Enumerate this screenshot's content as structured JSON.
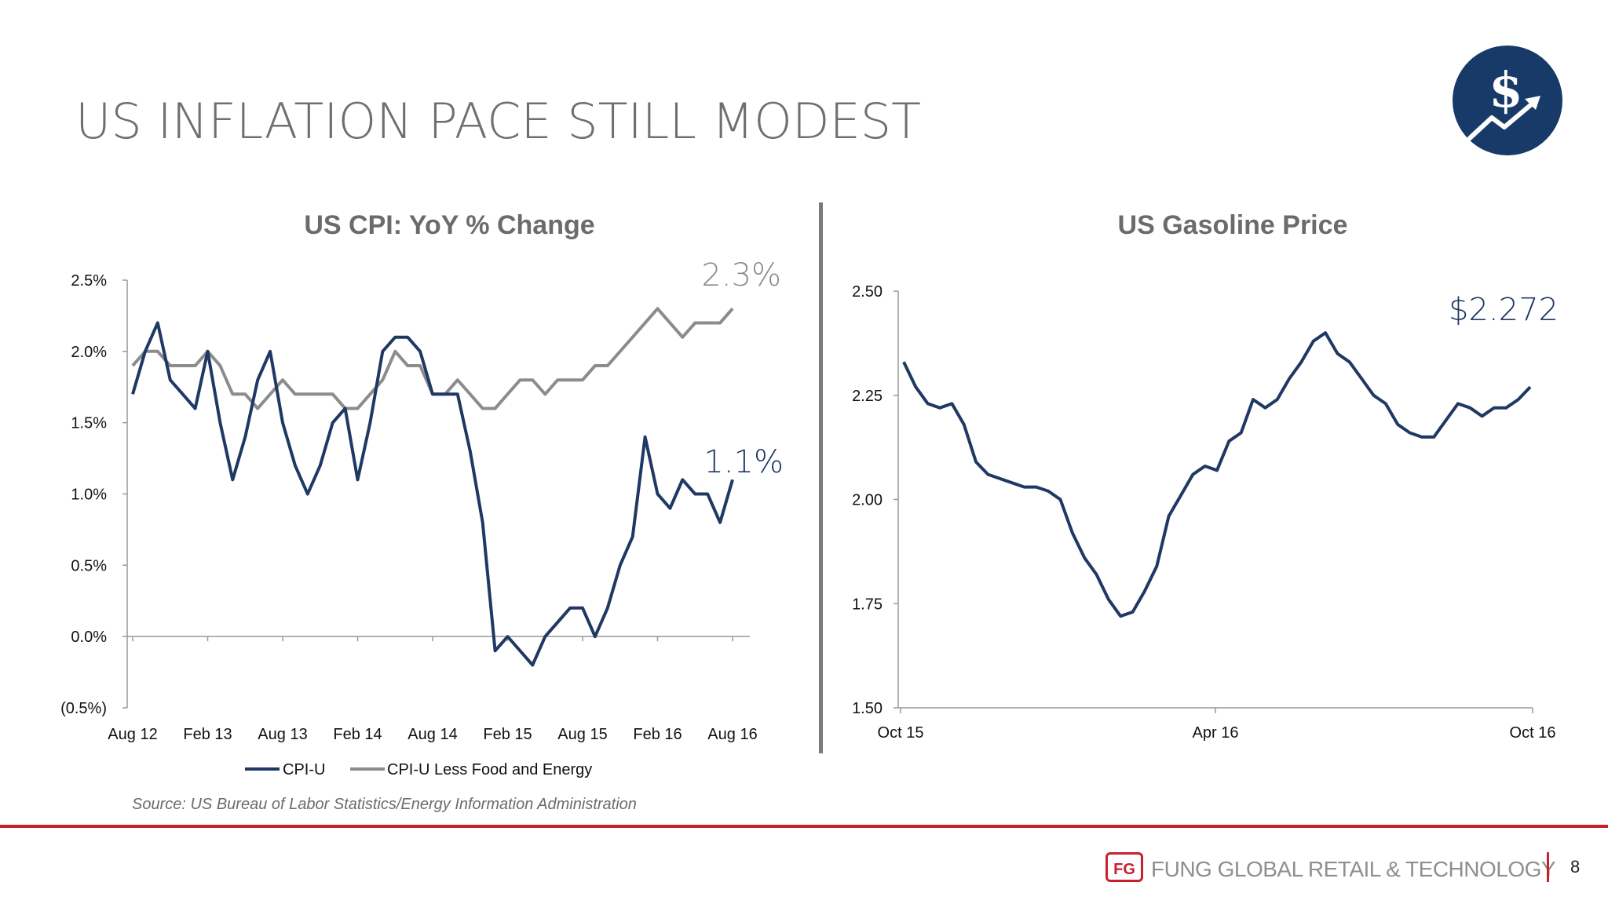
{
  "slide": {
    "title": "US INFLATION PACE STILL MODEST",
    "source": "Source: US Bureau of Labor Statistics/Energy Information Administration",
    "footer_brand": "FUNG GLOBAL RETAIL & TECHNOLOGY",
    "footer_logo_text": "FG",
    "page_number": "8",
    "logo_symbol": "$"
  },
  "colors": {
    "navy": "#1f3864",
    "gray_line": "#8c8c8c",
    "title_gray": "#6f6f6f",
    "accent_red": "#c8202f",
    "logo_bg": "#173a68"
  },
  "chart_data": [
    {
      "type": "line",
      "title": "US CPI: YoY % Change",
      "x": [
        "Aug 12",
        "Sep 12",
        "Oct 12",
        "Nov 12",
        "Dec 12",
        "Jan 13",
        "Feb 13",
        "Mar 13",
        "Apr 13",
        "May 13",
        "Jun 13",
        "Jul 13",
        "Aug 13",
        "Sep 13",
        "Oct 13",
        "Nov 13",
        "Dec 13",
        "Jan 14",
        "Feb 14",
        "Mar 14",
        "Apr 14",
        "May 14",
        "Jun 14",
        "Jul 14",
        "Aug 14",
        "Sep 14",
        "Oct 14",
        "Nov 14",
        "Dec 14",
        "Jan 15",
        "Feb 15",
        "Mar 15",
        "Apr 15",
        "May 15",
        "Jun 15",
        "Jul 15",
        "Aug 15",
        "Sep 15",
        "Oct 15",
        "Nov 15",
        "Dec 15",
        "Jan 16",
        "Feb 16",
        "Mar 16",
        "Apr 16",
        "May 16",
        "Jun 16",
        "Jul 16",
        "Aug 16"
      ],
      "xticklabels": [
        "Aug 12",
        "Feb 13",
        "Aug 13",
        "Feb 14",
        "Aug 14",
        "Feb 15",
        "Aug 15",
        "Feb 16",
        "Aug 16"
      ],
      "yticklabels": [
        "(0.5%)",
        "0.0%",
        "0.5%",
        "1.0%",
        "1.5%",
        "2.0%",
        "2.5%"
      ],
      "ylim": [
        -0.5,
        2.5
      ],
      "series": [
        {
          "name": "CPI-U",
          "color": "#1f3864",
          "values": [
            1.7,
            2.0,
            2.2,
            1.8,
            1.7,
            1.6,
            2.0,
            1.5,
            1.1,
            1.4,
            1.8,
            2.0,
            1.5,
            1.2,
            1.0,
            1.2,
            1.5,
            1.6,
            1.1,
            1.5,
            2.0,
            2.1,
            2.1,
            2.0,
            1.7,
            1.7,
            1.7,
            1.3,
            0.8,
            -0.1,
            0.0,
            -0.1,
            -0.2,
            0.0,
            0.1,
            0.2,
            0.2,
            0.0,
            0.2,
            0.5,
            0.7,
            1.4,
            1.0,
            0.9,
            1.1,
            1.0,
            1.0,
            0.8,
            1.1
          ]
        },
        {
          "name": "CPI-U Less Food and Energy",
          "color": "#8c8c8c",
          "values": [
            1.9,
            2.0,
            2.0,
            1.9,
            1.9,
            1.9,
            2.0,
            1.9,
            1.7,
            1.7,
            1.6,
            1.7,
            1.8,
            1.7,
            1.7,
            1.7,
            1.7,
            1.6,
            1.6,
            1.7,
            1.8,
            2.0,
            1.9,
            1.9,
            1.7,
            1.7,
            1.8,
            1.7,
            1.6,
            1.6,
            1.7,
            1.8,
            1.8,
            1.7,
            1.8,
            1.8,
            1.8,
            1.9,
            1.9,
            2.0,
            2.1,
            2.2,
            2.3,
            2.2,
            2.1,
            2.2,
            2.2,
            2.2,
            2.3
          ]
        }
      ],
      "annotations": [
        {
          "text": "2.3%",
          "series": "CPI-U Less Food and Energy"
        },
        {
          "text": "1.1%",
          "series": "CPI-U"
        }
      ],
      "legend": "bottom"
    },
    {
      "type": "line",
      "title": "US Gasoline Price",
      "xticklabels": [
        "Oct 15",
        "Apr 16",
        "Oct 16"
      ],
      "yticklabels": [
        "1.50",
        "1.75",
        "2.00",
        "2.25",
        "2.50"
      ],
      "ylim": [
        1.5,
        2.5
      ],
      "series": [
        {
          "name": "US Gasoline Price",
          "color": "#1f3864",
          "values": [
            2.33,
            2.27,
            2.23,
            2.22,
            2.23,
            2.18,
            2.09,
            2.06,
            2.05,
            2.04,
            2.03,
            2.03,
            2.02,
            2.0,
            1.92,
            1.86,
            1.82,
            1.76,
            1.72,
            1.73,
            1.78,
            1.84,
            1.96,
            2.01,
            2.06,
            2.08,
            2.07,
            2.14,
            2.16,
            2.24,
            2.22,
            2.24,
            2.29,
            2.33,
            2.38,
            2.4,
            2.35,
            2.33,
            2.29,
            2.25,
            2.23,
            2.18,
            2.16,
            2.15,
            2.15,
            2.19,
            2.23,
            2.22,
            2.2,
            2.22,
            2.22,
            2.24,
            2.27
          ]
        }
      ],
      "annotations": [
        {
          "text": "$2.272"
        }
      ]
    }
  ]
}
